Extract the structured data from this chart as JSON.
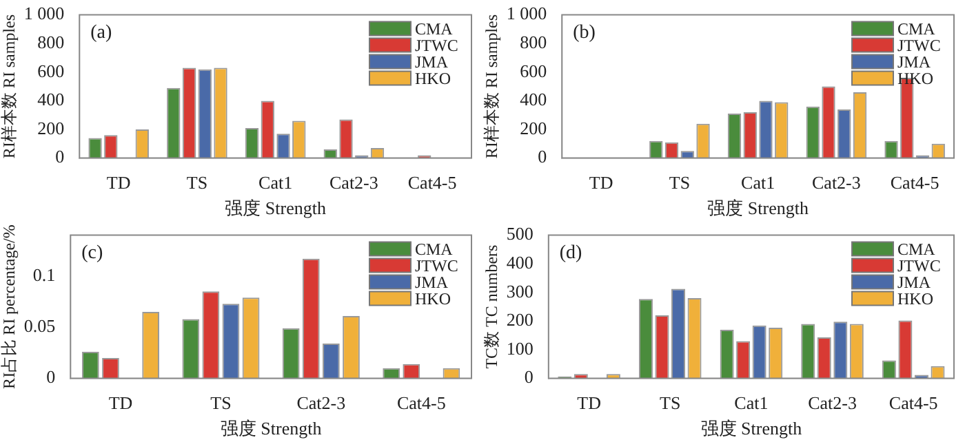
{
  "chart_data": [
    {
      "type": "bar",
      "annotations": [
        "(a)"
      ],
      "xlabel": "强度 Strength",
      "ylabel": "RI样本数 RI samples",
      "categories": [
        "TD",
        "TS",
        "Cat1",
        "Cat2-3",
        "Cat4-5"
      ],
      "ylim": [
        0,
        1000
      ],
      "yticks": [
        0,
        200,
        400,
        600,
        800,
        {
          "value": 1000,
          "label": "1 000"
        }
      ],
      "legend": "top right",
      "series": [
        {
          "name": "CMA",
          "color": "#4a8c3c",
          "values": [
            140,
            490,
            210,
            60,
            0
          ]
        },
        {
          "name": "JTWC",
          "color": "#d83a34",
          "values": [
            160,
            630,
            400,
            270,
            20
          ]
        },
        {
          "name": "JMA",
          "color": "#4a6aa8",
          "values": [
            0,
            620,
            170,
            20,
            0
          ]
        },
        {
          "name": "HKO",
          "color": "#f0b03a",
          "values": [
            200,
            630,
            260,
            70,
            0
          ]
        }
      ]
    },
    {
      "type": "bar",
      "annotations": [
        "(b)"
      ],
      "xlabel": "强度 Strength",
      "ylabel": "RI样本数 RI samples",
      "categories": [
        "TD",
        "TS",
        "Cat1",
        "Cat2-3",
        "Cat4-5"
      ],
      "ylim": [
        0,
        1000
      ],
      "yticks": [
        0,
        200,
        400,
        600,
        800,
        {
          "value": 1000,
          "label": "1 000"
        }
      ],
      "legend": "top right",
      "series": [
        {
          "name": "CMA",
          "color": "#4a8c3c",
          "values": [
            0,
            120,
            310,
            360,
            120
          ]
        },
        {
          "name": "JTWC",
          "color": "#d83a34",
          "values": [
            0,
            110,
            320,
            500,
            560
          ]
        },
        {
          "name": "JMA",
          "color": "#4a6aa8",
          "values": [
            0,
            50,
            400,
            340,
            20
          ]
        },
        {
          "name": "HKO",
          "color": "#f0b03a",
          "values": [
            0,
            240,
            390,
            460,
            100
          ]
        }
      ]
    },
    {
      "type": "bar",
      "annotations": [
        "(c)"
      ],
      "xlabel": "强度 Strength",
      "ylabel": "RI占比 RI percentage/%",
      "categories": [
        "TD",
        "TS",
        "Cat2-3",
        "Cat4-5"
      ],
      "ylim": [
        0,
        0.14
      ],
      "yticks": [
        0,
        0.05,
        0.1
      ],
      "legend": "top right",
      "series": [
        {
          "name": "CMA",
          "color": "#4a8c3c",
          "values": [
            0.026,
            0.058,
            0.049,
            0.01
          ]
        },
        {
          "name": "JTWC",
          "color": "#d83a34",
          "values": [
            0.02,
            0.085,
            0.117,
            0.014
          ]
        },
        {
          "name": "JMA",
          "color": "#4a6aa8",
          "values": [
            0,
            0.073,
            0.034,
            0
          ]
        },
        {
          "name": "HKO",
          "color": "#f0b03a",
          "values": [
            0.065,
            0.079,
            0.061,
            0.01
          ]
        }
      ]
    },
    {
      "type": "bar",
      "annotations": [
        "(d)"
      ],
      "xlabel": "强度 Strength",
      "ylabel": "TC数 TC numbers",
      "categories": [
        "TD",
        "TS",
        "Cat1",
        "Cat2-3",
        "Cat4-5"
      ],
      "ylim": [
        0,
        500
      ],
      "yticks": [
        0,
        100,
        200,
        300,
        400,
        500
      ],
      "legend": "top right",
      "series": [
        {
          "name": "CMA",
          "color": "#4a8c3c",
          "values": [
            7,
            277,
            170,
            190,
            63
          ]
        },
        {
          "name": "JTWC",
          "color": "#d83a34",
          "values": [
            15,
            220,
            130,
            143,
            202
          ]
        },
        {
          "name": "JMA",
          "color": "#4a6aa8",
          "values": [
            0,
            313,
            185,
            198,
            12
          ]
        },
        {
          "name": "HKO",
          "color": "#f0b03a",
          "values": [
            15,
            280,
            177,
            190,
            43
          ]
        }
      ]
    }
  ]
}
